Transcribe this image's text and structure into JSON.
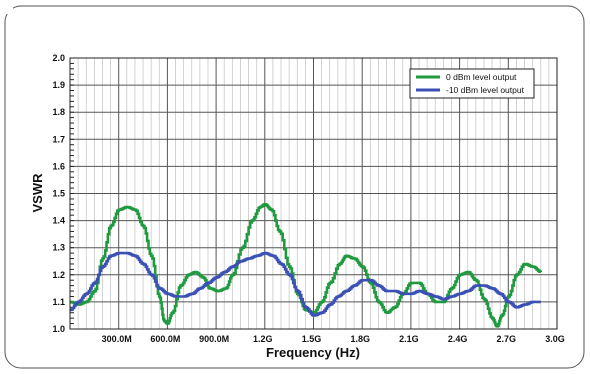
{
  "chart_data": {
    "type": "line",
    "title": "",
    "xlabel": "Frequency (Hz)",
    "ylabel": "VSWR",
    "xlim": [
      0,
      3.0
    ],
    "ylim": [
      1.0,
      2.0
    ],
    "grid": true,
    "legend_position": "top-right",
    "x_unit": "GHz",
    "x_ticks": [
      {
        "value": 0.3,
        "label": "300.0M"
      },
      {
        "value": 0.6,
        "label": "600.0M"
      },
      {
        "value": 0.9,
        "label": "900.0M"
      },
      {
        "value": 1.2,
        "label": "1.2G"
      },
      {
        "value": 1.5,
        "label": "1.5G"
      },
      {
        "value": 1.8,
        "label": "1.8G"
      },
      {
        "value": 2.1,
        "label": "2.1G"
      },
      {
        "value": 2.4,
        "label": "2.4G"
      },
      {
        "value": 2.7,
        "label": "2.7G"
      },
      {
        "value": 3.0,
        "label": "3.0G"
      }
    ],
    "y_ticks": [
      {
        "value": 1.0,
        "label": "1.0"
      },
      {
        "value": 1.1,
        "label": "1.1"
      },
      {
        "value": 1.2,
        "label": "1.2"
      },
      {
        "value": 1.3,
        "label": "1.3"
      },
      {
        "value": 1.4,
        "label": "1.4"
      },
      {
        "value": 1.5,
        "label": "1.5"
      },
      {
        "value": 1.6,
        "label": "1.6"
      },
      {
        "value": 1.7,
        "label": "1.7"
      },
      {
        "value": 1.8,
        "label": "1.8"
      },
      {
        "value": 1.9,
        "label": "1.9"
      },
      {
        "value": 2.0,
        "label": "2.0"
      }
    ],
    "series": [
      {
        "name": "0 dBm level output",
        "color": "#1f9a3e",
        "points": [
          [
            0.0,
            1.1
          ],
          [
            0.05,
            1.09
          ],
          [
            0.1,
            1.1
          ],
          [
            0.15,
            1.14
          ],
          [
            0.2,
            1.26
          ],
          [
            0.25,
            1.38
          ],
          [
            0.3,
            1.44
          ],
          [
            0.35,
            1.45
          ],
          [
            0.4,
            1.44
          ],
          [
            0.45,
            1.38
          ],
          [
            0.5,
            1.27
          ],
          [
            0.55,
            1.12
          ],
          [
            0.58,
            1.03
          ],
          [
            0.6,
            1.02
          ],
          [
            0.63,
            1.06
          ],
          [
            0.68,
            1.16
          ],
          [
            0.73,
            1.2
          ],
          [
            0.77,
            1.21
          ],
          [
            0.82,
            1.19
          ],
          [
            0.86,
            1.15
          ],
          [
            0.91,
            1.14
          ],
          [
            0.96,
            1.15
          ],
          [
            1.0,
            1.2
          ],
          [
            1.06,
            1.3
          ],
          [
            1.12,
            1.4
          ],
          [
            1.17,
            1.45
          ],
          [
            1.2,
            1.46
          ],
          [
            1.24,
            1.44
          ],
          [
            1.29,
            1.36
          ],
          [
            1.35,
            1.23
          ],
          [
            1.4,
            1.13
          ],
          [
            1.45,
            1.07
          ],
          [
            1.5,
            1.06
          ],
          [
            1.55,
            1.1
          ],
          [
            1.6,
            1.17
          ],
          [
            1.66,
            1.24
          ],
          [
            1.7,
            1.27
          ],
          [
            1.75,
            1.26
          ],
          [
            1.8,
            1.23
          ],
          [
            1.85,
            1.17
          ],
          [
            1.9,
            1.1
          ],
          [
            1.95,
            1.06
          ],
          [
            2.0,
            1.08
          ],
          [
            2.05,
            1.13
          ],
          [
            2.1,
            1.17
          ],
          [
            2.15,
            1.17
          ],
          [
            2.2,
            1.13
          ],
          [
            2.25,
            1.1
          ],
          [
            2.3,
            1.1
          ],
          [
            2.35,
            1.15
          ],
          [
            2.4,
            1.2
          ],
          [
            2.45,
            1.21
          ],
          [
            2.5,
            1.18
          ],
          [
            2.55,
            1.11
          ],
          [
            2.6,
            1.04
          ],
          [
            2.63,
            1.01
          ],
          [
            2.66,
            1.05
          ],
          [
            2.7,
            1.12
          ],
          [
            2.75,
            1.2
          ],
          [
            2.8,
            1.24
          ],
          [
            2.85,
            1.23
          ],
          [
            2.9,
            1.21
          ]
        ]
      },
      {
        "name": "-10 dBm level output",
        "color": "#3a50b5",
        "points": [
          [
            0.0,
            1.07
          ],
          [
            0.05,
            1.1
          ],
          [
            0.1,
            1.13
          ],
          [
            0.15,
            1.17
          ],
          [
            0.2,
            1.23
          ],
          [
            0.25,
            1.27
          ],
          [
            0.3,
            1.28
          ],
          [
            0.35,
            1.28
          ],
          [
            0.4,
            1.27
          ],
          [
            0.45,
            1.24
          ],
          [
            0.5,
            1.2
          ],
          [
            0.55,
            1.15
          ],
          [
            0.6,
            1.13
          ],
          [
            0.65,
            1.12
          ],
          [
            0.7,
            1.12
          ],
          [
            0.75,
            1.13
          ],
          [
            0.8,
            1.15
          ],
          [
            0.85,
            1.17
          ],
          [
            0.9,
            1.19
          ],
          [
            0.95,
            1.21
          ],
          [
            1.0,
            1.23
          ],
          [
            1.05,
            1.25
          ],
          [
            1.1,
            1.26
          ],
          [
            1.15,
            1.27
          ],
          [
            1.2,
            1.28
          ],
          [
            1.25,
            1.27
          ],
          [
            1.3,
            1.24
          ],
          [
            1.35,
            1.2
          ],
          [
            1.4,
            1.14
          ],
          [
            1.45,
            1.08
          ],
          [
            1.5,
            1.05
          ],
          [
            1.55,
            1.06
          ],
          [
            1.6,
            1.09
          ],
          [
            1.65,
            1.12
          ],
          [
            1.7,
            1.14
          ],
          [
            1.75,
            1.16
          ],
          [
            1.8,
            1.18
          ],
          [
            1.85,
            1.18
          ],
          [
            1.9,
            1.16
          ],
          [
            1.95,
            1.14
          ],
          [
            2.0,
            1.14
          ],
          [
            2.05,
            1.13
          ],
          [
            2.1,
            1.13
          ],
          [
            2.15,
            1.14
          ],
          [
            2.2,
            1.13
          ],
          [
            2.25,
            1.12
          ],
          [
            2.3,
            1.11
          ],
          [
            2.35,
            1.12
          ],
          [
            2.4,
            1.13
          ],
          [
            2.45,
            1.14
          ],
          [
            2.5,
            1.16
          ],
          [
            2.55,
            1.16
          ],
          [
            2.6,
            1.15
          ],
          [
            2.65,
            1.13
          ],
          [
            2.7,
            1.1
          ],
          [
            2.75,
            1.08
          ],
          [
            2.8,
            1.09
          ],
          [
            2.85,
            1.1
          ],
          [
            2.9,
            1.1
          ]
        ]
      }
    ]
  }
}
